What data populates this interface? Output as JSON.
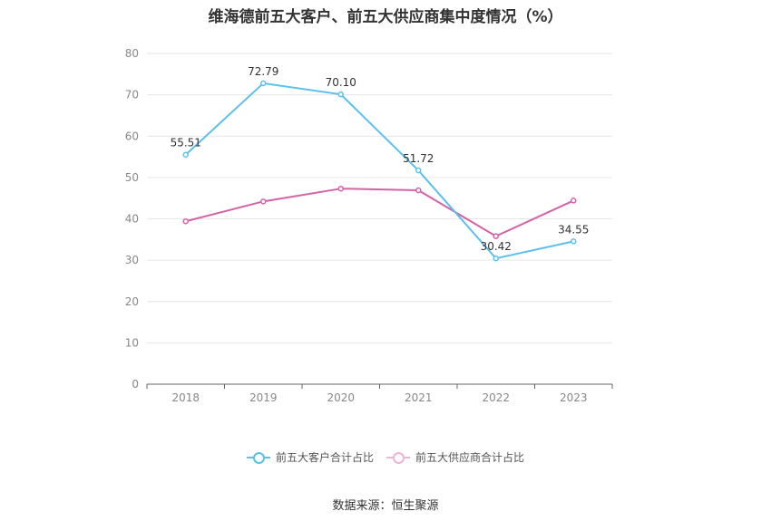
{
  "chart_data": {
    "type": "line",
    "title": "维海德前五大客户、前五大供应商集中度情况（%）",
    "categories": [
      "2018",
      "2019",
      "2020",
      "2021",
      "2022",
      "2023"
    ],
    "ylim": [
      0,
      80
    ],
    "yticks": [
      "0",
      "10",
      "20",
      "30",
      "40",
      "50",
      "60",
      "70",
      "80"
    ],
    "grid": true,
    "legend_position": "bottom",
    "series": [
      {
        "name": "前五大客户合计占比",
        "color": "#5bc0eb",
        "values": [
          55.51,
          72.79,
          70.1,
          51.72,
          30.42,
          34.55
        ],
        "labels": [
          "55.51",
          "72.79",
          "70.10",
          "51.72",
          "30.42",
          "34.55"
        ]
      },
      {
        "name": "前五大供应商合计占比",
        "color": "#d462a6",
        "values": [
          39.4,
          44.2,
          47.3,
          46.9,
          35.8,
          44.4
        ],
        "labels": []
      }
    ],
    "source": "数据来源：恒生聚源"
  }
}
